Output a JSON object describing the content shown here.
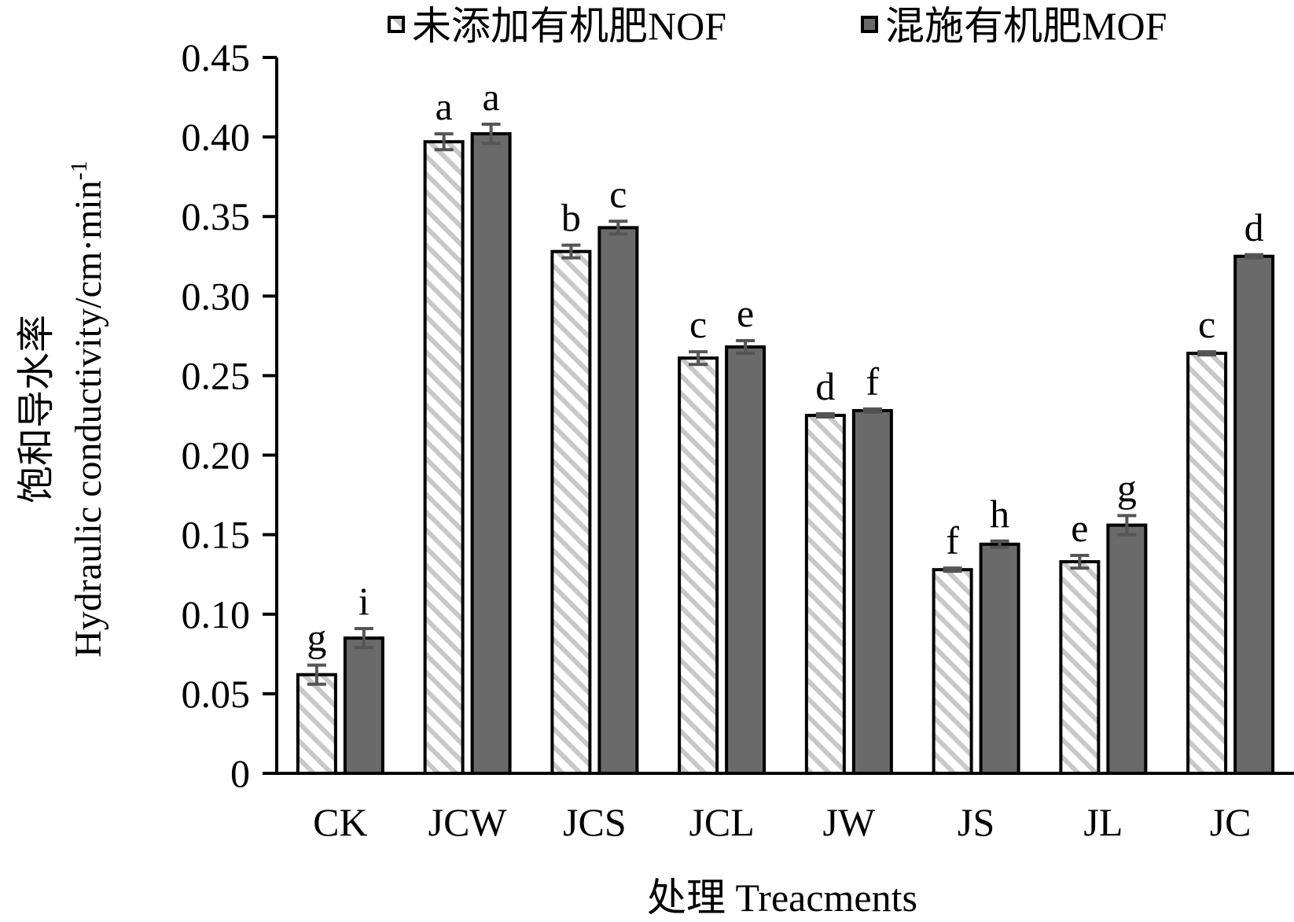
{
  "chart_data": {
    "type": "bar",
    "categories": [
      "CK",
      "JCW",
      "JCS",
      "JCL",
      "JW",
      "JS",
      "JL",
      "JC"
    ],
    "series": [
      {
        "name": "未添加有机肥NOF",
        "values": [
          0.062,
          0.397,
          0.328,
          0.261,
          0.225,
          0.128,
          0.133,
          0.264
        ],
        "errors": [
          0.006,
          0.005,
          0.004,
          0.004,
          0.001,
          0.001,
          0.004,
          0.001
        ],
        "labels": [
          "g",
          "a",
          "b",
          "c",
          "d",
          "f",
          "e",
          "c"
        ]
      },
      {
        "name": "混施有机肥MOF",
        "values": [
          0.085,
          0.402,
          0.343,
          0.268,
          0.228,
          0.144,
          0.156,
          0.325
        ],
        "errors": [
          0.006,
          0.006,
          0.004,
          0.004,
          0.001,
          0.002,
          0.006,
          0.001
        ],
        "labels": [
          "i",
          "a",
          "c",
          "e",
          "f",
          "h",
          "g",
          "d"
        ]
      }
    ],
    "ylim": [
      0,
      0.45
    ],
    "yticks": [
      "0",
      "0.05",
      "0.10",
      "0.15",
      "0.20",
      "0.25",
      "0.30",
      "0.35",
      "0.40",
      "0.45"
    ],
    "ylabel_cn": "饱和导水率",
    "ylabel_en": "Hydraulic conductivity/cm·min",
    "ylabel_sup": "-1",
    "xlabel": "处理 Treacments",
    "legend_position": "top-right",
    "grid": false,
    "colors": {
      "nof_fill": "#ffffff",
      "nof_hatch": "#c8c8c8",
      "mof_fill": "#6a6a6a",
      "axis": "#000000",
      "error": "#555555"
    }
  }
}
